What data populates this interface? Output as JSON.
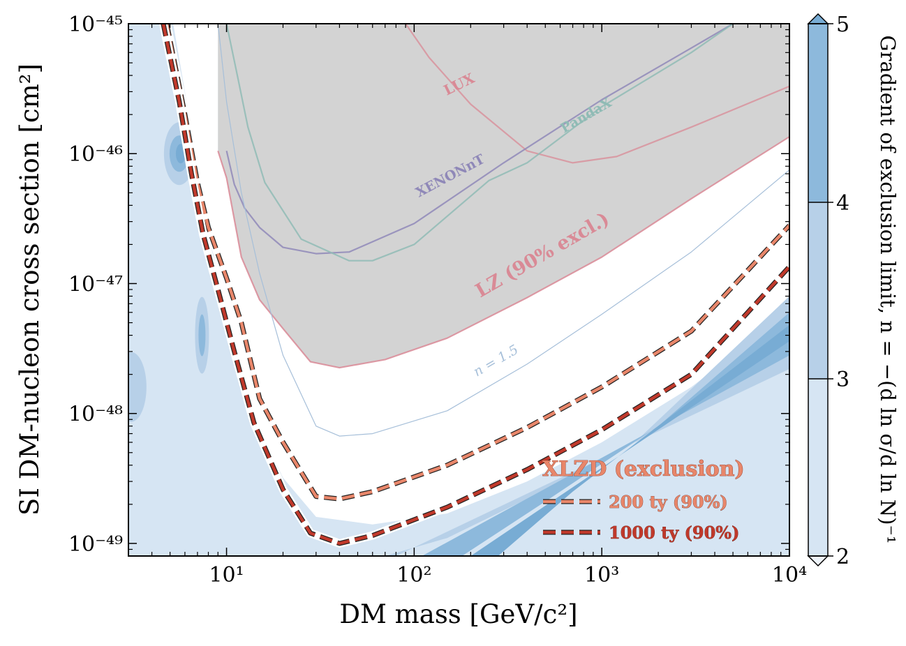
{
  "chart_data": {
    "type": "line",
    "xlabel": "DM mass [GeV/c²]",
    "ylabel": "SI DM-nucleon cross section [cm²]",
    "xscale": "log",
    "yscale": "log",
    "xlim": [
      3,
      10000
    ],
    "ylim": [
      8e-50,
      1e-45
    ],
    "x_ticks": [
      {
        "value": 10,
        "label": "10¹"
      },
      {
        "value": 100,
        "label": "10²"
      },
      {
        "value": 1000,
        "label": "10³"
      },
      {
        "value": 10000,
        "label": "10⁴"
      }
    ],
    "y_ticks": [
      {
        "value": 1e-49,
        "label": "10⁻⁴⁹"
      },
      {
        "value": 1e-48,
        "label": "10⁻⁴⁸"
      },
      {
        "value": 1e-47,
        "label": "10⁻⁴⁷"
      },
      {
        "value": 1e-46,
        "label": "10⁻⁴⁶"
      },
      {
        "value": 1e-45,
        "label": "10⁻⁴⁵"
      }
    ],
    "colorbar": {
      "label": "Gradient of exclusion limit, n = −(d ln σ/d ln N)⁻¹",
      "ticks": [
        "2",
        "3",
        "4",
        "5"
      ],
      "colors": [
        "#d6e5f3",
        "#b7d0e8",
        "#8db9dc"
      ]
    },
    "series": [
      {
        "name": "LUX",
        "color": "#d98a96",
        "points": [
          [
            90,
            1e-45
          ],
          [
            120,
            5.5e-46
          ],
          [
            200,
            2.4e-46
          ],
          [
            400,
            1.05e-46
          ],
          [
            700,
            8.5e-47
          ],
          [
            1200,
            9.5e-47
          ],
          [
            3000,
            1.6e-46
          ],
          [
            10000,
            3.3e-46
          ]
        ]
      },
      {
        "name": "XENONnT",
        "color": "#8f88b8",
        "points": [
          [
            10,
            1.05e-46
          ],
          [
            11,
            5.8e-47
          ],
          [
            12.5,
            3.8e-47
          ],
          [
            15,
            2.7e-47
          ],
          [
            20,
            1.9e-47
          ],
          [
            30,
            1.7e-47
          ],
          [
            45,
            1.75e-47
          ],
          [
            100,
            2.9e-47
          ],
          [
            300,
            8.5e-47
          ],
          [
            1000,
            2.6e-46
          ],
          [
            3000,
            6.5e-46
          ],
          [
            5000,
            1e-45
          ]
        ]
      },
      {
        "name": "PandaX",
        "color": "#8fbbb5",
        "points": [
          [
            10,
            1e-45
          ],
          [
            11.5,
            3.8e-46
          ],
          [
            13,
            1.6e-46
          ],
          [
            16,
            6e-47
          ],
          [
            25,
            2.2e-47
          ],
          [
            45,
            1.5e-47
          ],
          [
            60,
            1.5e-47
          ],
          [
            100,
            2e-47
          ],
          [
            250,
            6.2e-47
          ],
          [
            400,
            8.5e-47
          ],
          [
            1000,
            2.3e-46
          ],
          [
            3000,
            6e-46
          ],
          [
            5000,
            1e-45
          ]
        ]
      },
      {
        "name": "LZ (90% excl.)",
        "color": "#d98a96",
        "points": [
          [
            9,
            1.05e-46
          ],
          [
            10,
            6.5e-47
          ],
          [
            12,
            1.6e-47
          ],
          [
            15,
            7.5e-48
          ],
          [
            20,
            4.5e-48
          ],
          [
            28,
            2.5e-48
          ],
          [
            40,
            2.25e-48
          ],
          [
            70,
            2.6e-48
          ],
          [
            150,
            3.8e-48
          ],
          [
            400,
            7.8e-48
          ],
          [
            1000,
            1.6e-47
          ],
          [
            3000,
            4.5e-47
          ],
          [
            10000,
            1.35e-46
          ]
        ]
      },
      {
        "name": "n = 1.5",
        "color": "#a6bfd9",
        "points": [
          [
            9,
            1e-45
          ],
          [
            10,
            2.5e-46
          ],
          [
            12,
            5e-47
          ],
          [
            15,
            1.2e-47
          ],
          [
            20,
            2.8e-48
          ],
          [
            30,
            8e-49
          ],
          [
            40,
            6.7e-49
          ],
          [
            60,
            7e-49
          ],
          [
            150,
            1.05e-48
          ],
          [
            400,
            2.4e-48
          ],
          [
            1000,
            5.8e-48
          ],
          [
            3000,
            1.75e-47
          ],
          [
            10000,
            7.5e-47
          ]
        ]
      },
      {
        "name": "200 ty (90%)",
        "color": "#e8866a",
        "points": [
          [
            4.8,
            1e-45
          ],
          [
            6,
            2e-46
          ],
          [
            7,
            6e-47
          ],
          [
            8,
            2.7e-47
          ],
          [
            10,
            1.1e-47
          ],
          [
            12,
            5e-48
          ],
          [
            15,
            1.3e-48
          ],
          [
            20,
            6e-49
          ],
          [
            30,
            2.3e-49
          ],
          [
            40,
            2.2e-49
          ],
          [
            60,
            2.5e-49
          ],
          [
            150,
            4e-49
          ],
          [
            400,
            7.8e-49
          ],
          [
            1000,
            1.6e-48
          ],
          [
            3000,
            4.3e-48
          ],
          [
            10000,
            2.8e-47
          ]
        ]
      },
      {
        "name": "1000 ty (90%)",
        "color": "#c0392b",
        "points": [
          [
            4.6,
            1e-45
          ],
          [
            5.6,
            2.5e-46
          ],
          [
            6.5,
            7e-47
          ],
          [
            7.5,
            2.4e-47
          ],
          [
            9,
            9e-48
          ],
          [
            11,
            3e-48
          ],
          [
            14,
            8.5e-49
          ],
          [
            20,
            2.6e-49
          ],
          [
            28,
            1.2e-49
          ],
          [
            40,
            1e-49
          ],
          [
            60,
            1.15e-49
          ],
          [
            150,
            1.9e-49
          ],
          [
            400,
            3.7e-49
          ],
          [
            1000,
            7.5e-49
          ],
          [
            3000,
            2e-48
          ],
          [
            10000,
            1.35e-47
          ]
        ]
      }
    ]
  },
  "labels": {
    "lux": "LUX",
    "xenonnt": "XENONnT",
    "pandax": "PandaX",
    "lz": "LZ (90% excl.)",
    "n15": "n = 1.5"
  },
  "legend": {
    "title": "XLZD (exclusion)",
    "items": [
      {
        "label": "200 ty (90%)",
        "color": "#e8866a"
      },
      {
        "label": "1000 ty (90%)",
        "color": "#c0392b"
      }
    ]
  }
}
